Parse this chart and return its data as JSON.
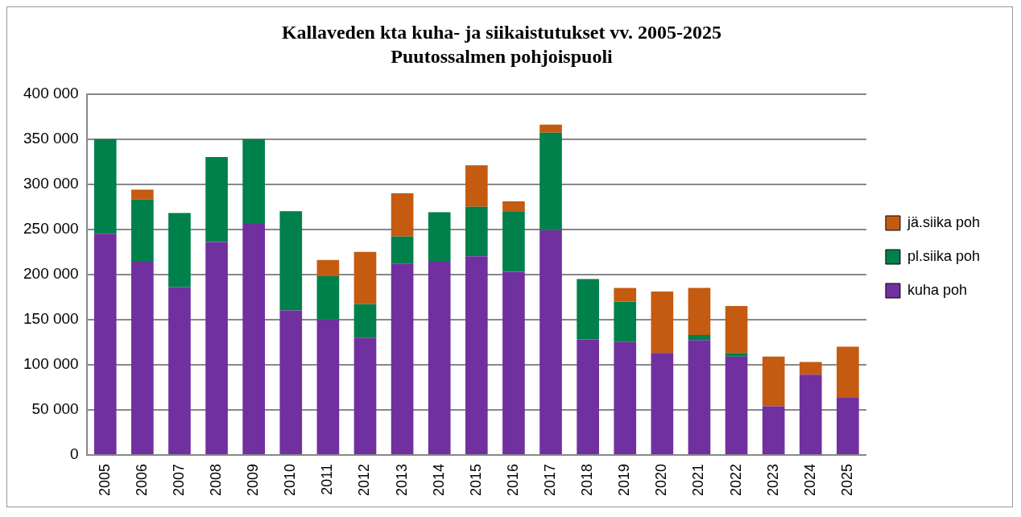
{
  "chart_data": {
    "type": "bar",
    "title": "Kallaveden kta kuha- ja siikaistutukset vv. 2005-2025",
    "subtitle": "Puutossalmen pohjoispuoli",
    "categories": [
      "2005",
      "2006",
      "2007",
      "2008",
      "2009",
      "2010",
      "2011",
      "2012",
      "2013",
      "2014",
      "2015",
      "2016",
      "2017",
      "2018",
      "2019",
      "2020",
      "2021",
      "2022",
      "2023",
      "2024",
      "2025"
    ],
    "stacked": true,
    "series": [
      {
        "name": "kuha poh",
        "color": "#7030a0",
        "values": [
          245000,
          214000,
          186000,
          236000,
          256000,
          160000,
          150000,
          130000,
          212000,
          214000,
          220000,
          203000,
          249000,
          128000,
          125000,
          113000,
          127000,
          109000,
          54000,
          89000,
          64000
        ]
      },
      {
        "name": "pl.siika poh",
        "color": "#00804a",
        "values": [
          105000,
          69000,
          82000,
          94000,
          94000,
          110000,
          48000,
          37000,
          30000,
          55000,
          55000,
          67000,
          108000,
          67000,
          45000,
          0,
          6000,
          4000,
          0,
          0,
          0
        ]
      },
      {
        "name": "jä.siika poh",
        "color": "#c55a11",
        "values": [
          0,
          11000,
          0,
          0,
          0,
          0,
          18000,
          58000,
          48000,
          0,
          46000,
          11000,
          9000,
          0,
          15000,
          68000,
          52000,
          52000,
          55000,
          14000,
          56000
        ]
      }
    ],
    "ylim": [
      0,
      400000
    ],
    "yticks": [
      {
        "value": 0,
        "label": "0"
      },
      {
        "value": 50000,
        "label": "50 000"
      },
      {
        "value": 100000,
        "label": "100 000"
      },
      {
        "value": 150000,
        "label": "150 000"
      },
      {
        "value": 200000,
        "label": "200 000"
      },
      {
        "value": 250000,
        "label": "250 000"
      },
      {
        "value": 300000,
        "label": "300 000"
      },
      {
        "value": 350000,
        "label": "350 000"
      },
      {
        "value": 400000,
        "label": "400 000"
      }
    ],
    "grid": "y",
    "legend": "right"
  }
}
